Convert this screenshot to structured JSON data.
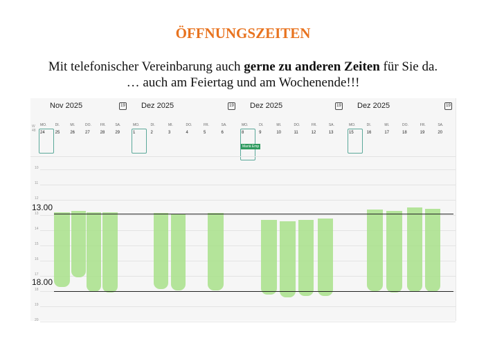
{
  "title": "ÖFFNUNGSZEITEN",
  "intro": {
    "pre": "Mit telefonischer Vereinbarung auch ",
    "bold": "gerne zu anderen Zeiten",
    "post": " für Sie da.",
    "line2": "… auch am Feiertag und am Wochenende!!!"
  },
  "day_names": [
    "MO.",
    "DI.",
    "MI.",
    "DO.",
    "FR.",
    "SA."
  ],
  "hours": [
    "10",
    "11",
    "12",
    "13",
    "14",
    "15",
    "16",
    "17",
    "18",
    "19",
    "20"
  ],
  "panels": [
    {
      "month": "Nov 2025",
      "week": "W 48",
      "days": [
        "24",
        "25",
        "26",
        "27",
        "28",
        "29"
      ]
    },
    {
      "month": "Dez 2025",
      "days": [
        "1",
        "2",
        "3",
        "4",
        "5",
        "6"
      ]
    },
    {
      "month": "Dez 2025",
      "days": [
        "8",
        "9",
        "10",
        "11",
        "12",
        "13"
      ],
      "event": "Mariä Emp"
    },
    {
      "month": "Dez 2025",
      "days": [
        "15",
        "16",
        "17",
        "18",
        "19",
        "20"
      ]
    }
  ],
  "calendar_icon": "19",
  "open_from": "13.00",
  "open_to": "18.00",
  "highlight_color": "#a8e08a"
}
